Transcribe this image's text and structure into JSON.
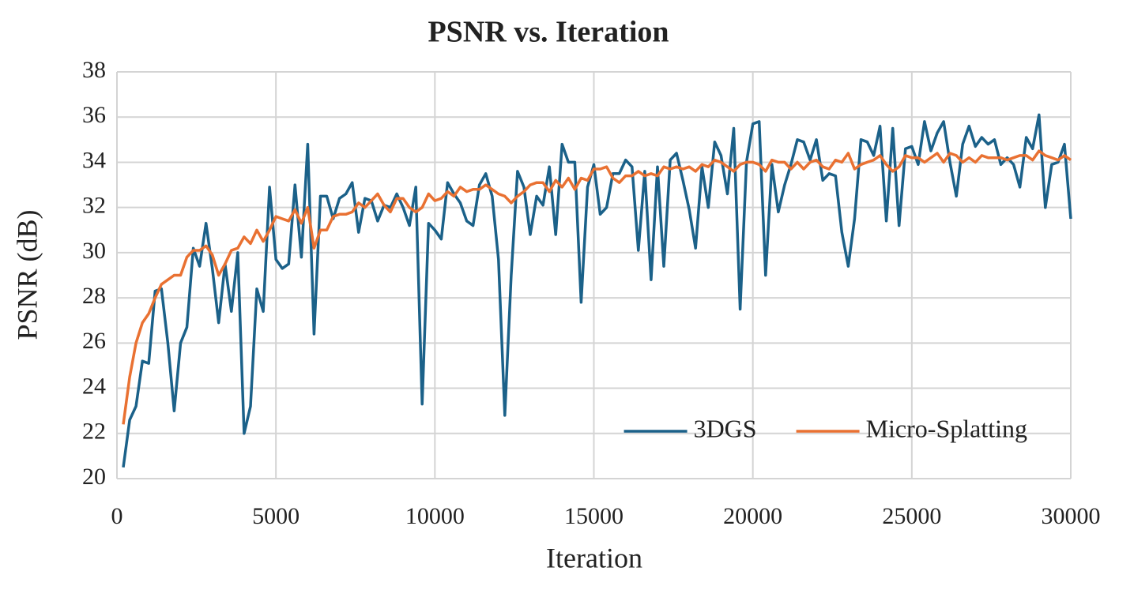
{
  "chart_data": {
    "type": "line",
    "title": "PSNR vs. Iteration",
    "xlabel": "Iteration",
    "ylabel": "PSNR (dB)",
    "x": [
      200,
      400,
      600,
      800,
      1000,
      1200,
      1400,
      1600,
      1800,
      2000,
      2200,
      2400,
      2600,
      2800,
      3000,
      3200,
      3400,
      3600,
      3800,
      4000,
      4200,
      4400,
      4600,
      4800,
      5000,
      5200,
      5400,
      5600,
      5800,
      6000,
      6200,
      6400,
      6600,
      6800,
      7000,
      7200,
      7400,
      7600,
      7800,
      8000,
      8200,
      8400,
      8600,
      8800,
      9000,
      9200,
      9400,
      9600,
      9800,
      10000,
      10200,
      10400,
      10600,
      10800,
      11000,
      11200,
      11400,
      11600,
      11800,
      12000,
      12200,
      12400,
      12600,
      12800,
      13000,
      13200,
      13400,
      13600,
      13800,
      14000,
      14200,
      14400,
      14600,
      14800,
      15000,
      15200,
      15400,
      15600,
      15800,
      16000,
      16200,
      16400,
      16600,
      16800,
      17000,
      17200,
      17400,
      17600,
      17800,
      18000,
      18200,
      18400,
      18600,
      18800,
      19000,
      19200,
      19400,
      19600,
      19800,
      20000,
      20200,
      20400,
      20600,
      20800,
      21000,
      21200,
      21400,
      21600,
      21800,
      22000,
      22200,
      22400,
      22600,
      22800,
      23000,
      23200,
      23400,
      23600,
      23800,
      24000,
      24200,
      24400,
      24600,
      24800,
      25000,
      25200,
      25400,
      25600,
      25800,
      26000,
      26200,
      26400,
      26600,
      26800,
      27000,
      27200,
      27400,
      27600,
      27800,
      28000,
      28200,
      28400,
      28600,
      28800,
      29000,
      29200,
      29400,
      29600,
      29800,
      30000
    ],
    "series": [
      {
        "name": "3DGS",
        "color": "#1b6189",
        "values": [
          20.5,
          22.6,
          23.2,
          25.2,
          25.1,
          28.3,
          28.4,
          26.0,
          23.0,
          26.0,
          26.7,
          30.2,
          29.4,
          31.3,
          29.3,
          26.9,
          29.5,
          27.4,
          30.0,
          22.0,
          23.2,
          28.4,
          27.4,
          32.9,
          29.7,
          29.3,
          29.5,
          33.0,
          29.8,
          34.8,
          26.4,
          32.5,
          32.5,
          31.5,
          32.4,
          32.6,
          33.1,
          30.9,
          32.4,
          32.3,
          31.4,
          32.1,
          32.0,
          32.6,
          32.0,
          31.2,
          32.9,
          23.3,
          31.3,
          31.0,
          30.6,
          33.1,
          32.6,
          32.2,
          31.4,
          31.2,
          33.0,
          33.5,
          32.5,
          29.7,
          22.8,
          29.0,
          33.6,
          32.9,
          30.8,
          32.5,
          32.1,
          33.8,
          30.8,
          34.8,
          34.0,
          34.0,
          27.8,
          32.9,
          33.9,
          31.7,
          32.0,
          33.5,
          33.5,
          34.1,
          33.8,
          30.1,
          33.6,
          28.8,
          33.8,
          29.4,
          34.1,
          34.4,
          33.2,
          31.9,
          30.2,
          33.8,
          32.0,
          34.9,
          34.3,
          32.6,
          35.5,
          27.5,
          34.0,
          35.7,
          35.8,
          29.0,
          33.9,
          31.8,
          33.0,
          33.9,
          35.0,
          34.9,
          34.1,
          35.0,
          33.2,
          33.5,
          33.4,
          30.9,
          29.4,
          31.5,
          35.0,
          34.9,
          34.3,
          35.6,
          31.4,
          35.5,
          31.2,
          34.6,
          34.7,
          33.9,
          35.8,
          34.5,
          35.3,
          35.8,
          34.0,
          32.5,
          34.8,
          35.6,
          34.7,
          35.1,
          34.8,
          35.0,
          33.9,
          34.2,
          33.9,
          32.9,
          35.1,
          34.6,
          36.1,
          32.0,
          33.9,
          34.0,
          34.8,
          31.5
        ]
      },
      {
        "name": "Micro-Splatting",
        "color": "#e97132",
        "values": [
          22.4,
          24.5,
          26.0,
          26.9,
          27.3,
          28.0,
          28.6,
          28.8,
          29.0,
          29.0,
          29.8,
          30.1,
          30.1,
          30.3,
          29.9,
          29.0,
          29.5,
          30.1,
          30.2,
          30.7,
          30.4,
          31.0,
          30.5,
          31.0,
          31.6,
          31.5,
          31.4,
          31.9,
          31.3,
          32.0,
          30.2,
          31.0,
          31.0,
          31.6,
          31.7,
          31.7,
          31.8,
          32.2,
          32.0,
          32.3,
          32.6,
          32.1,
          31.8,
          32.4,
          32.4,
          32.0,
          31.8,
          32.0,
          32.6,
          32.3,
          32.4,
          32.7,
          32.5,
          32.9,
          32.7,
          32.8,
          32.8,
          33.0,
          32.8,
          32.6,
          32.5,
          32.2,
          32.5,
          32.7,
          33.0,
          33.1,
          33.1,
          32.7,
          33.2,
          32.9,
          33.3,
          32.8,
          33.3,
          33.2,
          33.7,
          33.7,
          33.8,
          33.3,
          33.1,
          33.4,
          33.4,
          33.6,
          33.4,
          33.5,
          33.4,
          33.8,
          33.7,
          33.8,
          33.7,
          33.8,
          33.6,
          33.9,
          33.8,
          34.1,
          34.0,
          33.8,
          33.6,
          33.9,
          34.0,
          34.0,
          33.9,
          33.6,
          34.1,
          34.0,
          34.0,
          33.7,
          34.0,
          33.7,
          34.0,
          34.1,
          33.8,
          33.7,
          34.1,
          34.0,
          34.4,
          33.7,
          33.9,
          34.0,
          34.1,
          34.3,
          33.9,
          33.6,
          33.8,
          34.3,
          34.2,
          34.2,
          34.0,
          34.2,
          34.4,
          34.0,
          34.4,
          34.3,
          34.0,
          34.2,
          34.0,
          34.3,
          34.2,
          34.2,
          34.2,
          34.1,
          34.2,
          34.3,
          34.3,
          34.1,
          34.5,
          34.3,
          34.2,
          34.1,
          34.3,
          34.1
        ]
      }
    ],
    "xlim": [
      0,
      30000
    ],
    "xticks": [
      0,
      5000,
      10000,
      15000,
      20000,
      25000,
      30000
    ],
    "ylim": [
      20,
      38
    ],
    "yticks": [
      20,
      22,
      24,
      26,
      28,
      30,
      32,
      34,
      36,
      38
    ],
    "grid": true,
    "legend": "lower right"
  }
}
